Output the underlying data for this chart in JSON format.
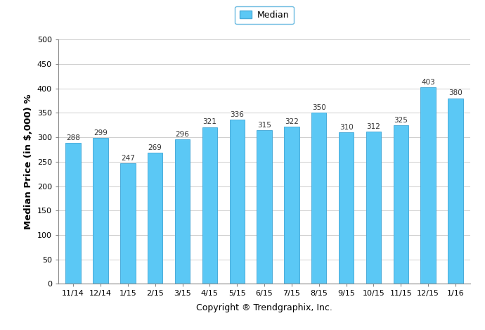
{
  "categories": [
    "11/14",
    "12/14",
    "1/15",
    "2/15",
    "3/15",
    "4/15",
    "5/15",
    "6/15",
    "7/15",
    "8/15",
    "9/15",
    "10/15",
    "11/15",
    "12/15",
    "1/16"
  ],
  "values": [
    288,
    299,
    247,
    269,
    296,
    321,
    336,
    315,
    322,
    350,
    310,
    312,
    325,
    403,
    380
  ],
  "bar_color": "#5BC8F5",
  "bar_edge_color": "#4AACDA",
  "ylabel": "Median Price (in $,000) %",
  "xlabel": "Copyright ® Trendgraphix, Inc.",
  "ylim": [
    0,
    500
  ],
  "yticks": [
    0,
    50,
    100,
    150,
    200,
    250,
    300,
    350,
    400,
    450,
    500
  ],
  "legend_label": "Median",
  "legend_box_color": "#5BC8F5",
  "legend_box_edge_color": "#4AACDA",
  "bar_width": 0.55,
  "label_fontsize": 7.5,
  "axis_label_fontsize": 9,
  "tick_fontsize": 8,
  "ylabel_fontsize": 9.5,
  "background_color": "#ffffff"
}
